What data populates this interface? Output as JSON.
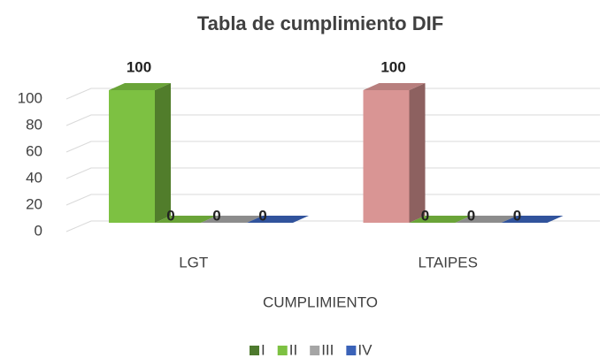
{
  "chart_data": {
    "type": "bar3d",
    "title": "Tabla de cumplimiento DIF",
    "x_label": "CUMPLIMIENTO",
    "categories": [
      "LGT",
      "LTAIPES"
    ],
    "series": [
      {
        "name": "I",
        "color": "#4e7a2e",
        "point_colors": [
          "#7dc142",
          "#d99594"
        ],
        "values": [
          100,
          100
        ]
      },
      {
        "name": "II",
        "color": "#7dc142",
        "values": [
          0,
          0
        ]
      },
      {
        "name": "III",
        "color": "#a5a5a5",
        "values": [
          0,
          0
        ]
      },
      {
        "name": "IV",
        "color": "#3a62b8",
        "values": [
          0,
          0
        ]
      }
    ],
    "ylim": [
      0,
      100
    ],
    "yticks": [
      0,
      20,
      40,
      60,
      80,
      100
    ],
    "grid": true,
    "legend": "bottom"
  }
}
